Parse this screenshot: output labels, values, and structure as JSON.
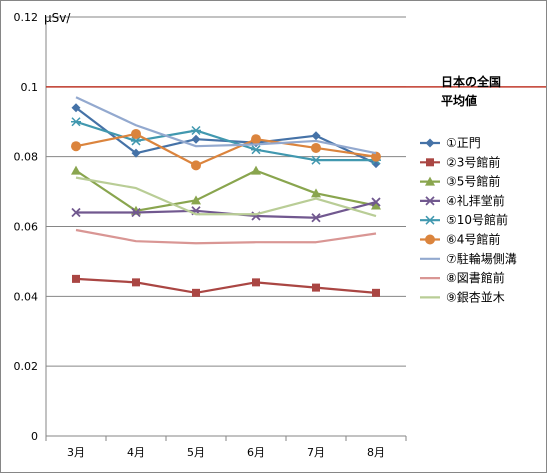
{
  "chart_data": {
    "type": "line",
    "categories": [
      "3月",
      "4月",
      "5月",
      "6月",
      "7月",
      "8月"
    ],
    "ylabel": "μSv/",
    "ylim": [
      0,
      0.12
    ],
    "yticks": [
      "0",
      "0.02",
      "0.04",
      "0.06",
      "0.08",
      "0.1",
      "0.12"
    ],
    "grid": true,
    "legend_position": "right",
    "reference_line": {
      "name": "日本の全国平均値",
      "label_lines": [
        "日本の全国",
        "平均値"
      ],
      "value": 0.1,
      "color": "#C0392B"
    },
    "series": [
      {
        "name": "①正門",
        "color": "#4572A7",
        "marker": "diamond",
        "values": [
          0.094,
          0.081,
          0.085,
          0.084,
          0.086,
          0.078
        ]
      },
      {
        "name": "②3号館前",
        "color": "#AA4643",
        "marker": "square",
        "values": [
          0.045,
          0.044,
          0.041,
          0.044,
          0.0425,
          0.041
        ]
      },
      {
        "name": "③5号館前",
        "color": "#89A54E",
        "marker": "triangle",
        "values": [
          0.076,
          0.0645,
          0.0675,
          0.076,
          0.0695,
          0.066
        ]
      },
      {
        "name": "④礼拝堂前",
        "color": "#71588F",
        "marker": "x",
        "values": [
          0.064,
          0.064,
          0.0645,
          0.063,
          0.0625,
          0.067
        ]
      },
      {
        "name": "⑤10号館前",
        "color": "#4198AF",
        "marker": "star",
        "values": [
          0.09,
          0.0845,
          0.0875,
          0.082,
          0.079,
          0.079
        ]
      },
      {
        "name": "⑥4号館前",
        "color": "#DB843D",
        "marker": "circle",
        "values": [
          0.083,
          0.0865,
          0.0775,
          0.085,
          0.0825,
          0.08
        ]
      },
      {
        "name": "⑦駐輪場側溝",
        "color": "#93A9CF",
        "marker": "line",
        "values": [
          0.097,
          0.089,
          0.083,
          0.0835,
          0.0845,
          0.081
        ]
      },
      {
        "name": "⑧図書館前",
        "color": "#D99694",
        "marker": "line",
        "values": [
          0.059,
          0.0558,
          0.0552,
          0.0555,
          0.0555,
          0.058
        ]
      },
      {
        "name": "⑨銀杏並木",
        "color": "#B9CD96",
        "marker": "line",
        "values": [
          0.074,
          0.071,
          0.0635,
          0.0635,
          0.068,
          0.063
        ]
      }
    ]
  }
}
